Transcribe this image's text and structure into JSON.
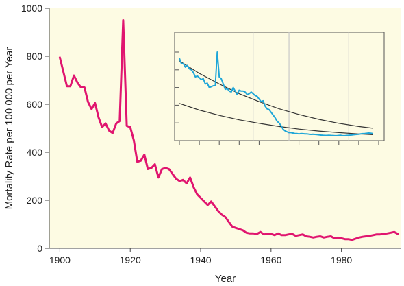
{
  "chart_data": {
    "type": "line",
    "title": "",
    "xlabel": "Year",
    "ylabel": "Mortality Rate per 100 000 per Year",
    "xlim": [
      1897,
      1997
    ],
    "ylim": [
      0,
      1000
    ],
    "x_ticks": [
      1900,
      1920,
      1940,
      1960,
      1980
    ],
    "y_ticks": [
      0,
      200,
      400,
      600,
      800,
      1000
    ],
    "grid": false,
    "colors": {
      "background": "#fdfbe3",
      "main_series": "#e0156f",
      "inset_series": "#1ea6d8",
      "trend_lines": "#333333",
      "inset_grid": "#c9c9c9"
    },
    "series": [
      {
        "x": [
          1900,
          1901,
          1902,
          1903,
          1904,
          1905,
          1906,
          1907,
          1908,
          1909,
          1910,
          1911,
          1912,
          1913,
          1914,
          1915,
          1916,
          1917,
          1918,
          1919,
          1920,
          1921,
          1922,
          1923,
          1924,
          1925,
          1926,
          1927,
          1928,
          1929,
          1930,
          1931,
          1932,
          1933,
          1934,
          1935,
          1936,
          1937,
          1938,
          1939,
          1940,
          1941,
          1942,
          1943,
          1944,
          1945,
          1946,
          1947,
          1948,
          1949,
          1950,
          1951,
          1952,
          1953,
          1954,
          1955,
          1956,
          1957,
          1958,
          1959,
          1960,
          1961,
          1962,
          1963,
          1964,
          1965,
          1966,
          1967,
          1968,
          1969,
          1970,
          1971,
          1972,
          1973,
          1974,
          1975,
          1976,
          1977,
          1978,
          1979,
          1980,
          1981,
          1982,
          1983,
          1984,
          1985,
          1986,
          1987,
          1988,
          1989,
          1990,
          1991,
          1992,
          1993,
          1994,
          1995,
          1996
        ],
        "values": [
          795,
          735,
          675,
          675,
          720,
          690,
          670,
          670,
          610,
          580,
          605,
          545,
          505,
          520,
          490,
          480,
          520,
          530,
          950,
          510,
          505,
          450,
          360,
          365,
          390,
          330,
          335,
          350,
          295,
          330,
          335,
          330,
          310,
          290,
          280,
          285,
          270,
          295,
          255,
          225,
          210,
          195,
          180,
          195,
          175,
          155,
          140,
          130,
          110,
          90,
          85,
          80,
          75,
          65,
          62,
          62,
          60,
          68,
          58,
          60,
          60,
          55,
          62,
          55,
          55,
          58,
          60,
          52,
          55,
          58,
          50,
          48,
          45,
          48,
          50,
          45,
          48,
          50,
          42,
          45,
          42,
          38,
          38,
          35,
          40,
          45,
          48,
          50,
          52,
          55,
          58,
          58,
          60,
          62,
          65,
          68,
          60
        ]
      }
    ],
    "inset": {
      "x_ticks": [
        1900,
        1910,
        1920,
        1930,
        1940,
        1950,
        1960,
        1970,
        1980,
        1990,
        2000
      ],
      "y_ticks": [
        0,
        200,
        400,
        600,
        800,
        1000
      ],
      "gridlines_x": [
        1937,
        1955,
        1985
      ],
      "xlim": [
        1900,
        2000
      ],
      "ylim": [
        0,
        1000
      ],
      "series": {
        "x": [
          1900,
          1901,
          1902,
          1903,
          1904,
          1905,
          1906,
          1907,
          1908,
          1909,
          1910,
          1911,
          1912,
          1913,
          1914,
          1915,
          1916,
          1917,
          1918,
          1919,
          1920,
          1921,
          1922,
          1923,
          1924,
          1925,
          1926,
          1927,
          1928,
          1929,
          1930,
          1931,
          1932,
          1933,
          1934,
          1935,
          1936,
          1937,
          1938,
          1939,
          1940,
          1941,
          1942,
          1943,
          1944,
          1945,
          1946,
          1947,
          1948,
          1949,
          1950,
          1951,
          1952,
          1953,
          1954,
          1955,
          1956,
          1957,
          1958,
          1959,
          1960,
          1961,
          1962,
          1963,
          1964,
          1965,
          1966,
          1967,
          1968,
          1969,
          1970,
          1971,
          1972,
          1973,
          1974,
          1975,
          1976,
          1977,
          1978,
          1979,
          1980,
          1981,
          1982,
          1983,
          1984,
          1985,
          1986,
          1987,
          1988,
          1989,
          1990,
          1991,
          1992,
          1993,
          1994,
          1995,
          1996,
          1997
        ],
        "values": [
          930,
          870,
          870,
          830,
          850,
          810,
          800,
          770,
          720,
          730,
          710,
          690,
          700,
          640,
          650,
          600,
          610,
          620,
          620,
          1000,
          720,
          700,
          640,
          580,
          590,
          560,
          550,
          600,
          560,
          520,
          570,
          560,
          560,
          550,
          520,
          530,
          550,
          530,
          510,
          500,
          470,
          440,
          450,
          390,
          360,
          350,
          320,
          290,
          260,
          220,
          200,
          170,
          130,
          110,
          100,
          90,
          90,
          85,
          80,
          80,
          75,
          80,
          78,
          75,
          76,
          72,
          70,
          72,
          70,
          68,
          65,
          62,
          60,
          58,
          58,
          60,
          58,
          57,
          55,
          55,
          58,
          60,
          55,
          55,
          58,
          60,
          62,
          65,
          68,
          70,
          72,
          75,
          78,
          80,
          82,
          85,
          84,
          80
        ]
      },
      "trend_lines": [
        {
          "x": [
            1900,
            1910,
            1920,
            1930,
            1940,
            1950,
            1960,
            1970,
            1980,
            1990,
            1997
          ],
          "values": [
            900,
            760,
            640,
            530,
            440,
            360,
            295,
            240,
            195,
            160,
            140
          ]
        },
        {
          "x": [
            1900,
            1910,
            1920,
            1930,
            1940,
            1950,
            1960,
            1970,
            1980,
            1990,
            1997
          ],
          "values": [
            420,
            345,
            285,
            235,
            195,
            160,
            130,
            108,
            90,
            75,
            67
          ]
        }
      ]
    }
  }
}
